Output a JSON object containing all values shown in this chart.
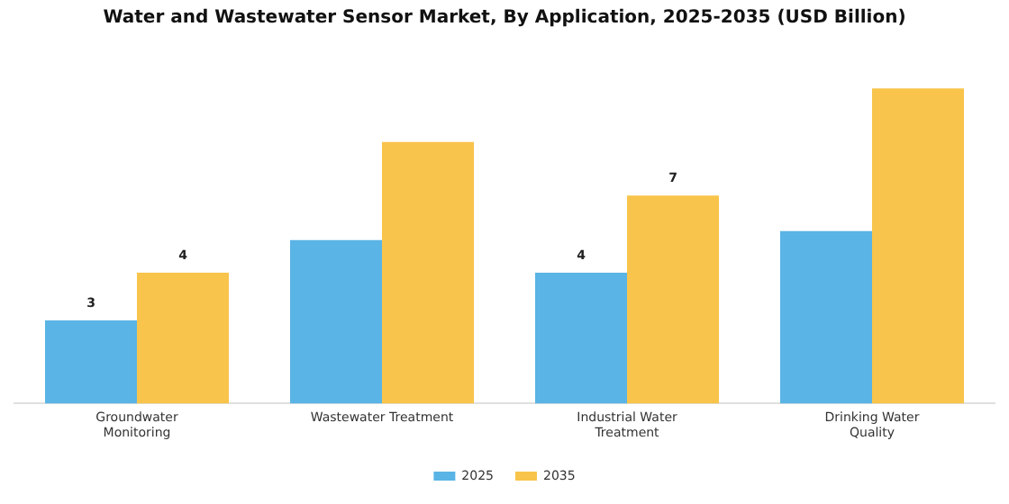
{
  "chart_data": {
    "type": "bar",
    "title": "Water and Wastewater Sensor Market, By Application, 2025-2035 (USD Billion)",
    "categories": [
      "Groundwater Monitoring",
      "Wastewater Treatment",
      "Industrial Water Treatment",
      "Drinking Water Quality"
    ],
    "series": [
      {
        "name": "2025",
        "color": "#5ab4e5",
        "values": [
          2.8,
          5.5,
          4.4,
          5.8
        ],
        "value_labels": [
          "3",
          null,
          "4",
          null
        ]
      },
      {
        "name": "2035",
        "color": "#f8c44b",
        "values": [
          4.4,
          8.8,
          7.0,
          10.6
        ],
        "value_labels": [
          "4",
          null,
          "7",
          null
        ]
      }
    ],
    "tick_labels": "x",
    "grid": false,
    "legend": "bottom"
  }
}
